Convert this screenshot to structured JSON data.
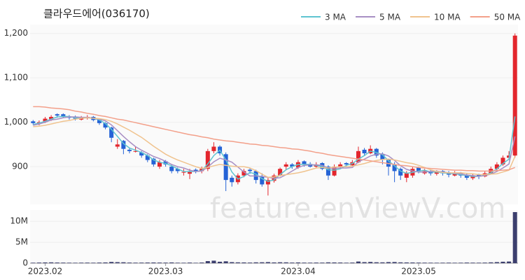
{
  "chart_data": {
    "type": "candlestick",
    "title": "클라우드에어(036170)",
    "watermark": "feature.enViewV.com",
    "xlim": [
      -0.5,
      80.5
    ],
    "xticks": [
      {
        "value": 2,
        "label": "2023.02"
      },
      {
        "value": 22,
        "label": "2023.03"
      },
      {
        "value": 44,
        "label": "2023.04"
      },
      {
        "value": 64,
        "label": "2023.05"
      }
    ],
    "ylim": [
      815,
      1220
    ],
    "yticks": [
      {
        "value": 900,
        "label": "900"
      },
      {
        "value": 1000,
        "label": "1,000"
      },
      {
        "value": 1100,
        "label": "1,100"
      },
      {
        "value": 1200,
        "label": "1,200"
      }
    ],
    "up_color": "#e3262d",
    "down_color": "#2563d6",
    "candles": [
      [
        1002,
        1005,
        994,
        998
      ],
      [
        996,
        1004,
        993,
        1000
      ],
      [
        1000,
        1012,
        998,
        1008
      ],
      [
        1006,
        1016,
        1003,
        1012
      ],
      [
        1018,
        1020,
        1010,
        1015
      ],
      [
        1018,
        1020,
        1010,
        1013
      ],
      [
        1012,
        1016,
        1006,
        1010
      ],
      [
        1012,
        1015,
        1004,
        1008
      ],
      [
        1006,
        1014,
        1004,
        1010
      ],
      [
        1010,
        1016,
        1006,
        1012
      ],
      [
        1012,
        1014,
        1002,
        1005
      ],
      [
        1005,
        1008,
        994,
        998
      ],
      [
        998,
        1000,
        984,
        988
      ],
      [
        988,
        990,
        955,
        965
      ],
      [
        945,
        962,
        940,
        950
      ],
      [
        958,
        960,
        928,
        940
      ],
      [
        938,
        942,
        930,
        935
      ],
      [
        935,
        945,
        932,
        935
      ],
      [
        932,
        935,
        920,
        925
      ],
      [
        925,
        928,
        910,
        915
      ],
      [
        918,
        920,
        900,
        905
      ],
      [
        900,
        915,
        895,
        910
      ],
      [
        912,
        915,
        900,
        905
      ],
      [
        900,
        905,
        885,
        890
      ],
      [
        895,
        898,
        885,
        890
      ],
      [
        888,
        895,
        880,
        888
      ],
      [
        884,
        895,
        872,
        888
      ],
      [
        893,
        896,
        885,
        890
      ],
      [
        890,
        900,
        885,
        895
      ],
      [
        895,
        940,
        890,
        935
      ],
      [
        935,
        955,
        930,
        945
      ],
      [
        945,
        948,
        925,
        930
      ],
      [
        928,
        932,
        845,
        870
      ],
      [
        875,
        880,
        855,
        865
      ],
      [
        865,
        885,
        860,
        880
      ],
      [
        880,
        895,
        876,
        890
      ],
      [
        893,
        897,
        884,
        890
      ],
      [
        890,
        893,
        862,
        870
      ],
      [
        878,
        885,
        855,
        860
      ],
      [
        860,
        875,
        835,
        870
      ],
      [
        868,
        884,
        864,
        880
      ],
      [
        880,
        898,
        878,
        895
      ],
      [
        900,
        910,
        892,
        905
      ],
      [
        905,
        908,
        895,
        900
      ],
      [
        898,
        915,
        895,
        910
      ],
      [
        912,
        914,
        900,
        905
      ],
      [
        906,
        910,
        898,
        900
      ],
      [
        900,
        910,
        896,
        905
      ],
      [
        908,
        910,
        892,
        895
      ],
      [
        900,
        903,
        870,
        880
      ],
      [
        880,
        905,
        878,
        900
      ],
      [
        900,
        910,
        896,
        905
      ],
      [
        908,
        910,
        900,
        905
      ],
      [
        903,
        915,
        900,
        910
      ],
      [
        910,
        945,
        908,
        935
      ],
      [
        938,
        942,
        925,
        930
      ],
      [
        930,
        948,
        928,
        940
      ],
      [
        940,
        942,
        920,
        925
      ],
      [
        928,
        932,
        905,
        915
      ],
      [
        915,
        918,
        880,
        900
      ],
      [
        905,
        910,
        865,
        890
      ],
      [
        895,
        898,
        870,
        880
      ],
      [
        875,
        890,
        865,
        885
      ],
      [
        880,
        900,
        875,
        895
      ],
      [
        898,
        900,
        885,
        890
      ],
      [
        885,
        895,
        882,
        890
      ],
      [
        890,
        893,
        880,
        885
      ],
      [
        884,
        892,
        880,
        888
      ],
      [
        890,
        892,
        880,
        885
      ],
      [
        887,
        890,
        876,
        882
      ],
      [
        880,
        890,
        878,
        885
      ],
      [
        886,
        888,
        875,
        880
      ],
      [
        882,
        885,
        870,
        875
      ],
      [
        874,
        884,
        870,
        880
      ],
      [
        882,
        884,
        872,
        878
      ],
      [
        878,
        890,
        876,
        885
      ],
      [
        885,
        900,
        883,
        895
      ],
      [
        895,
        910,
        892,
        905
      ],
      [
        905,
        925,
        902,
        920
      ],
      [
        920,
        935,
        915,
        925
      ],
      [
        925,
        1200,
        920,
        1195
      ]
    ],
    "series": [
      {
        "name": "3 MA",
        "color": "#5fc4d0",
        "values": [
          995,
          998,
          1002,
          1007,
          1012,
          1013,
          1013,
          1010,
          1009,
          1010,
          1009,
          1005,
          997,
          984,
          968,
          952,
          942,
          937,
          932,
          925,
          915,
          910,
          907,
          902,
          895,
          889,
          889,
          889,
          891,
          906,
          925,
          937,
          915,
          888,
          872,
          878,
          887,
          883,
          873,
          867,
          870,
          882,
          893,
          900,
          905,
          905,
          905,
          903,
          900,
          893,
          892,
          895,
          903,
          907,
          917,
          925,
          935,
          932,
          927,
          913,
          902,
          890,
          885,
          887,
          890,
          892,
          888,
          888,
          886,
          885,
          884,
          882,
          880,
          878,
          878,
          881,
          886,
          895,
          907,
          917,
          1013
        ]
      },
      {
        "name": "5 MA",
        "color": "#a88fc4",
        "values": [
          993,
          996,
          1000,
          1005,
          1007,
          1010,
          1012,
          1012,
          1011,
          1011,
          1009,
          1007,
          1003,
          994,
          981,
          968,
          956,
          945,
          937,
          930,
          923,
          918,
          912,
          905,
          900,
          897,
          892,
          889,
          890,
          899,
          911,
          919,
          915,
          910,
          899,
          888,
          879,
          879,
          878,
          876,
          874,
          875,
          882,
          890,
          898,
          903,
          904,
          904,
          903,
          897,
          896,
          897,
          897,
          898,
          911,
          917,
          924,
          928,
          929,
          924,
          914,
          902,
          894,
          890,
          888,
          888,
          889,
          890,
          888,
          886,
          885,
          884,
          881,
          880,
          878,
          880,
          883,
          889,
          897,
          906,
          968
        ]
      },
      {
        "name": "10 MA",
        "color": "#f0c38e",
        "values": [
          990,
          991,
          993,
          996,
          999,
          1002,
          1004,
          1007,
          1009,
          1010,
          1009,
          1008,
          1006,
          1002,
          996,
          989,
          982,
          974,
          966,
          956,
          946,
          937,
          928,
          921,
          915,
          910,
          905,
          900,
          896,
          898,
          902,
          905,
          903,
          901,
          900,
          900,
          897,
          891,
          883,
          876,
          877,
          880,
          882,
          884,
          886,
          889,
          893,
          897,
          898,
          897,
          899,
          900,
          900,
          901,
          904,
          907,
          911,
          914,
          916,
          917,
          915,
          912,
          909,
          907,
          903,
          898,
          893,
          889,
          887,
          886,
          886,
          886,
          885,
          884,
          882,
          882,
          883,
          884,
          888,
          892,
          923
        ]
      },
      {
        "name": "50 MA",
        "color": "#f3a08a",
        "values": [
          1035,
          1035,
          1034,
          1032,
          1031,
          1030,
          1028,
          1025,
          1023,
          1020,
          1018,
          1015,
          1013,
          1010,
          1007,
          1005,
          1002,
          999,
          996,
          993,
          990,
          987,
          984,
          981,
          978,
          975,
          972,
          970,
          967,
          965,
          962,
          960,
          958,
          957,
          955,
          953,
          951,
          950,
          948,
          947,
          945,
          943,
          942,
          940,
          939,
          937,
          935,
          932,
          930,
          927,
          925,
          923,
          921,
          919,
          917,
          915,
          913,
          911,
          909,
          907,
          905,
          903,
          902,
          900,
          898,
          897,
          896,
          895,
          894,
          893,
          892,
          892,
          891,
          891,
          890,
          890,
          890,
          891,
          892,
          893,
          898
        ]
      }
    ],
    "volume_color": "#3c3f6e",
    "volume_ylim": [
      0,
      12700000
    ],
    "volume_ticks": [
      {
        "value": 0,
        "label": "0"
      },
      {
        "value": 5000000,
        "label": "5M"
      },
      {
        "value": 10000000,
        "label": "10M"
      }
    ],
    "volume": [
      120000,
      150000,
      180000,
      200000,
      160000,
      140000,
      120000,
      110000,
      130000,
      140000,
      120000,
      150000,
      180000,
      300000,
      250000,
      220000,
      150000,
      130000,
      140000,
      160000,
      170000,
      150000,
      140000,
      180000,
      120000,
      110000,
      150000,
      100000,
      160000,
      500000,
      600000,
      350000,
      450000,
      250000,
      200000,
      180000,
      150000,
      200000,
      220000,
      260000,
      180000,
      220000,
      200000,
      150000,
      180000,
      140000,
      130000,
      150000,
      140000,
      200000,
      180000,
      160000,
      120000,
      150000,
      400000,
      250000,
      300000,
      220000,
      200000,
      260000,
      280000,
      200000,
      180000,
      170000,
      140000,
      130000,
      120000,
      110000,
      120000,
      130000,
      110000,
      120000,
      150000,
      130000,
      120000,
      140000,
      200000,
      260000,
      350000,
      400000,
      12200000
    ]
  }
}
